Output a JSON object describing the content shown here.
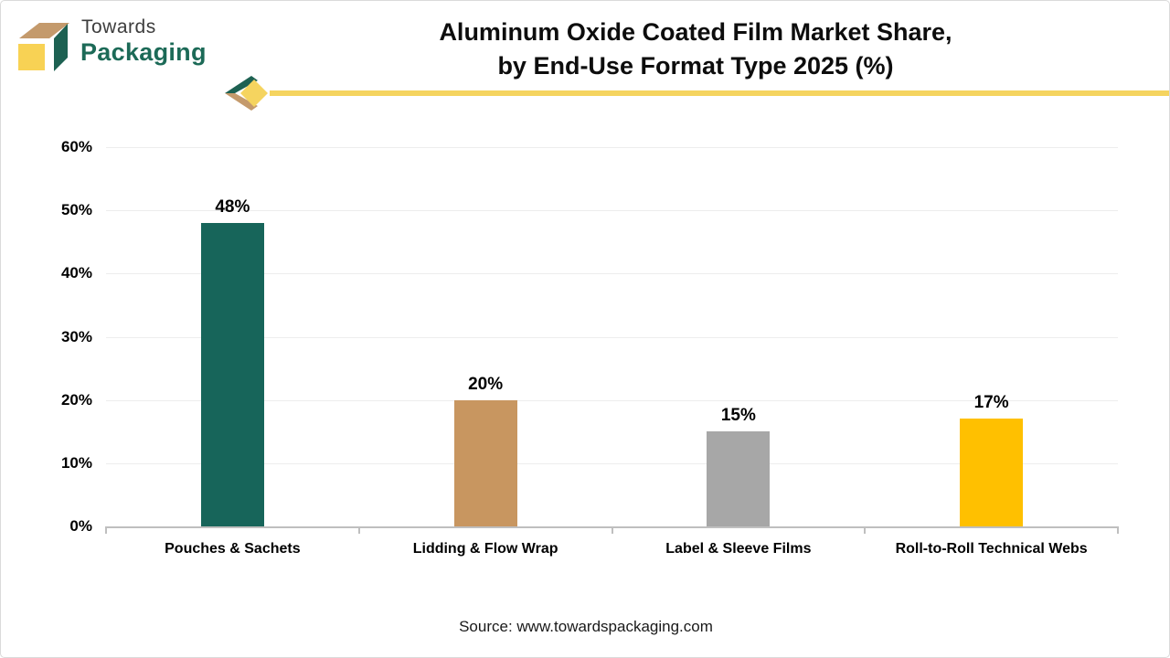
{
  "logo": {
    "line1": "Towards",
    "line2": "Packaging",
    "colors": {
      "cube_top": "#c49a6c",
      "cube_side": "#1d6152",
      "cube_front": "#f8d254",
      "wordmark_green": "#1c6a57"
    }
  },
  "header": {
    "title_line1": "Aluminum Oxide Coated Film Market Share,",
    "title_line2": "by End-Use Format Type 2025 (%)",
    "underline_color": "#f5d45f"
  },
  "chart_data": {
    "type": "bar",
    "title": "Aluminum Oxide Coated Film Market Share, by End-Use Format Type 2025 (%)",
    "categories": [
      "Pouches & Sachets",
      "Lidding & Flow Wrap",
      "Label & Sleeve Films",
      "Roll-to-Roll Technical Webs"
    ],
    "values": [
      48,
      20,
      15,
      17
    ],
    "value_labels": [
      "48%",
      "20%",
      "15%",
      "17%"
    ],
    "bar_colors": [
      "#17655a",
      "#c89660",
      "#a7a7a7",
      "#ffc000"
    ],
    "xlabel": "",
    "ylabel": "",
    "ylim": [
      0,
      60
    ],
    "ytick_step": 10,
    "ytick_labels": [
      "0%",
      "10%",
      "20%",
      "30%",
      "40%",
      "50%",
      "60%"
    ],
    "grid": true,
    "gridline_color": "#ededed",
    "axis_color": "#bfbfbf",
    "legend": "none"
  },
  "footer": {
    "source": "Source: www.towardspackaging.com"
  }
}
